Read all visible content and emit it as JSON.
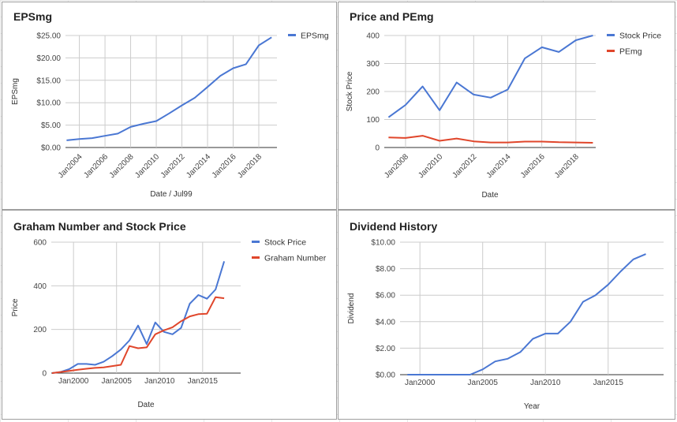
{
  "colors": {
    "blue": "#4a77d3",
    "red": "#e0462b",
    "grid": "#cccccc",
    "baseline": "#333333"
  },
  "chart_data": [
    {
      "type": "line",
      "title": "EPSmg",
      "xlabel": "Date / Jul99",
      "ylabel": "EPSmg",
      "x_type": "date",
      "x_ticks": [
        "Jan2004",
        "Jan2006",
        "Jan2008",
        "Jan2010",
        "Jan2012",
        "Jan2014",
        "Jan2016",
        "Jan2018"
      ],
      "y_ticks": [
        "$0.00",
        "$5.00",
        "$10.00",
        "$15.00",
        "$20.00",
        "$25.00"
      ],
      "xlim": [
        "2002-12",
        "2019-06"
      ],
      "ylim": [
        0,
        25
      ],
      "legend": "right",
      "grid": true,
      "series": [
        {
          "name": "EPSmg",
          "color": "blue",
          "points": [
            [
              "2003-01",
              1.6
            ],
            [
              "2004-01",
              1.9
            ],
            [
              "2005-01",
              2.1
            ],
            [
              "2006-01",
              2.6
            ],
            [
              "2007-01",
              3.1
            ],
            [
              "2008-01",
              4.6
            ],
            [
              "2009-01",
              5.3
            ],
            [
              "2010-01",
              5.9
            ],
            [
              "2011-01",
              7.6
            ],
            [
              "2012-01",
              9.4
            ],
            [
              "2013-01",
              11.1
            ],
            [
              "2014-01",
              13.5
            ],
            [
              "2015-01",
              16.0
            ],
            [
              "2016-01",
              17.7
            ],
            [
              "2017-01",
              18.6
            ],
            [
              "2018-01",
              22.8
            ],
            [
              "2019-01",
              24.6
            ]
          ]
        }
      ]
    },
    {
      "type": "line",
      "title": "Price and PEmg",
      "xlabel": "Date",
      "ylabel": "Stock Price",
      "x_type": "date",
      "x_ticks": [
        "Jan2008",
        "Jan2010",
        "Jan2012",
        "Jan2014",
        "Jan2016",
        "Jan2018"
      ],
      "y_ticks": [
        "0",
        "100",
        "200",
        "300",
        "400"
      ],
      "xlim": [
        "2006-10",
        "2019-03"
      ],
      "ylim": [
        0,
        400
      ],
      "legend": "right",
      "grid": true,
      "series": [
        {
          "name": "Stock Price",
          "color": "blue",
          "points": [
            [
              "2007-01",
              108
            ],
            [
              "2008-01",
              152
            ],
            [
              "2009-01",
              218
            ],
            [
              "2010-01",
              133
            ],
            [
              "2011-01",
              232
            ],
            [
              "2012-01",
              189
            ],
            [
              "2013-01",
              178
            ],
            [
              "2014-01",
              207
            ],
            [
              "2015-01",
              318
            ],
            [
              "2016-01",
              358
            ],
            [
              "2017-01",
              341
            ],
            [
              "2018-01",
              383
            ],
            [
              "2019-01",
              400
            ]
          ]
        },
        {
          "name": "PEmg",
          "color": "red",
          "points": [
            [
              "2007-01",
              36
            ],
            [
              "2008-01",
              34
            ],
            [
              "2009-01",
              42
            ],
            [
              "2010-01",
              24
            ],
            [
              "2011-01",
              32
            ],
            [
              "2012-01",
              22
            ],
            [
              "2013-01",
              18
            ],
            [
              "2014-01",
              18
            ],
            [
              "2015-01",
              21
            ],
            [
              "2016-01",
              21
            ],
            [
              "2017-01",
              19
            ],
            [
              "2018-01",
              18
            ],
            [
              "2019-01",
              17
            ]
          ]
        }
      ]
    },
    {
      "type": "line",
      "title": "Graham Number and Stock Price",
      "xlabel": "Date",
      "ylabel": "Price",
      "x_type": "date",
      "x_ticks": [
        "Jan2000",
        "Jan2005",
        "Jan2010",
        "Jan2015"
      ],
      "y_ticks": [
        "0",
        "200",
        "400",
        "600"
      ],
      "xlim": [
        "1997-06",
        "2019-06"
      ],
      "ylim": [
        0,
        600
      ],
      "legend": "right",
      "grid": true,
      "series": [
        {
          "name": "Stock Price",
          "color": "blue",
          "points": [
            [
              "1997-07",
              0
            ],
            [
              "1998-07",
              5
            ],
            [
              "1999-07",
              18
            ],
            [
              "2000-07",
              42
            ],
            [
              "2001-07",
              42
            ],
            [
              "2002-07",
              38
            ],
            [
              "2003-07",
              52
            ],
            [
              "2004-07",
              78
            ],
            [
              "2005-07",
              108
            ],
            [
              "2006-07",
              150
            ],
            [
              "2007-07",
              218
            ],
            [
              "2008-07",
              133
            ],
            [
              "2009-07",
              232
            ],
            [
              "2010-07",
              189
            ],
            [
              "2011-07",
              178
            ],
            [
              "2012-07",
              207
            ],
            [
              "2013-07",
              318
            ],
            [
              "2014-07",
              358
            ],
            [
              "2015-07",
              341
            ],
            [
              "2016-07",
              383
            ],
            [
              "2017-07",
              512
            ]
          ]
        },
        {
          "name": "Graham Number",
          "color": "red",
          "points": [
            [
              "1997-07",
              0
            ],
            [
              "1998-07",
              5
            ],
            [
              "1999-07",
              10
            ],
            [
              "2000-07",
              15
            ],
            [
              "2001-07",
              20
            ],
            [
              "2002-07",
              24
            ],
            [
              "2003-07",
              26
            ],
            [
              "2004-07",
              32
            ],
            [
              "2005-07",
              38
            ],
            [
              "2006-07",
              124
            ],
            [
              "2007-07",
              114
            ],
            [
              "2008-07",
              118
            ],
            [
              "2009-07",
              178
            ],
            [
              "2010-07",
              196
            ],
            [
              "2011-07",
              210
            ],
            [
              "2012-07",
              238
            ],
            [
              "2013-07",
              260
            ],
            [
              "2014-07",
              270
            ],
            [
              "2015-07",
              272
            ],
            [
              "2016-07",
              348
            ],
            [
              "2017-07",
              343
            ]
          ]
        }
      ]
    },
    {
      "type": "line",
      "title": "Dividend History",
      "xlabel": "Year",
      "ylabel": "Dividend",
      "x_type": "date",
      "x_ticks": [
        "Jan2000",
        "Jan2005",
        "Jan2010",
        "Jan2015"
      ],
      "y_ticks": [
        "$0.00",
        "$2.00",
        "$4.00",
        "$6.00",
        "$8.00",
        "$10.00"
      ],
      "xlim": [
        "1998-06",
        "2019-06"
      ],
      "ylim": [
        0,
        10
      ],
      "legend": "none",
      "grid": true,
      "series": [
        {
          "name": "",
          "color": "blue",
          "points": [
            [
              "1999-01",
              0
            ],
            [
              "2000-01",
              0
            ],
            [
              "2001-01",
              0
            ],
            [
              "2002-01",
              0
            ],
            [
              "2003-01",
              0
            ],
            [
              "2004-01",
              0
            ],
            [
              "2005-01",
              0.4
            ],
            [
              "2006-01",
              1.0
            ],
            [
              "2007-01",
              1.2
            ],
            [
              "2008-01",
              1.7
            ],
            [
              "2009-01",
              2.7
            ],
            [
              "2010-01",
              3.1
            ],
            [
              "2011-01",
              3.1
            ],
            [
              "2012-01",
              4.0
            ],
            [
              "2013-01",
              5.5
            ],
            [
              "2014-01",
              6.0
            ],
            [
              "2015-01",
              6.8
            ],
            [
              "2016-01",
              7.8
            ],
            [
              "2017-01",
              8.7
            ],
            [
              "2018-01",
              9.1
            ]
          ]
        }
      ]
    }
  ]
}
